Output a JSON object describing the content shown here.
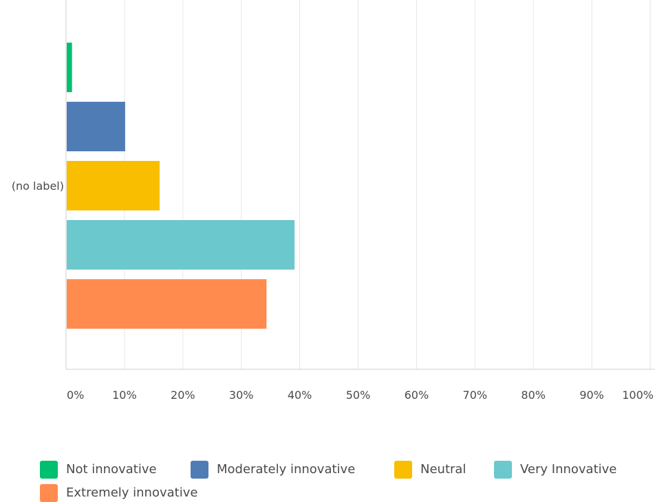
{
  "chart_data": {
    "type": "bar",
    "orientation": "horizontal",
    "categories": [
      "(no label)"
    ],
    "series": [
      {
        "name": "Not innovative",
        "values": [
          0.9
        ],
        "color": "#00bf6f"
      },
      {
        "name": "Moderately innovative",
        "values": [
          10
        ],
        "color": "#507cb6"
      },
      {
        "name": "Neutral",
        "values": [
          15.9
        ],
        "color": "#f9be00"
      },
      {
        "name": "Very Innovative",
        "values": [
          39
        ],
        "color": "#6bc8cd"
      },
      {
        "name": "Extremely innovative",
        "values": [
          34.2
        ],
        "color": "#ff8b4f"
      }
    ],
    "x_ticks": [
      "0%",
      "10%",
      "20%",
      "30%",
      "40%",
      "50%",
      "60%",
      "70%",
      "80%",
      "90%",
      "100%"
    ],
    "xlim": [
      0,
      100
    ],
    "grid": true,
    "legend_position": "bottom"
  },
  "colors": {
    "grid": "#e6e6e6",
    "axis": "#cfcfcf",
    "text": "#4a4a4a"
  }
}
